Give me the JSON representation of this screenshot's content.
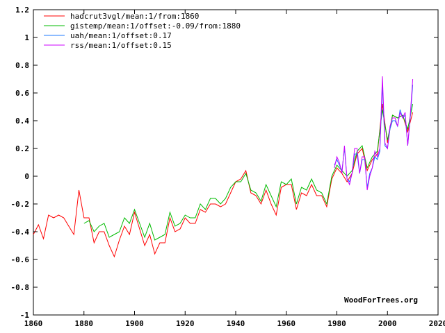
{
  "chart_data": {
    "type": "line",
    "title": "",
    "xlabel": "",
    "ylabel": "",
    "xlim": [
      1860,
      2020
    ],
    "ylim": [
      -1,
      1.2
    ],
    "x_ticks": [
      1860,
      1880,
      1900,
      1920,
      1940,
      1960,
      1980,
      2000,
      2020
    ],
    "y_ticks": [
      -1,
      -0.8,
      -0.6,
      -0.4,
      -0.2,
      0,
      0.2,
      0.4,
      0.6,
      0.8,
      1,
      1.2
    ],
    "x_tick_labels": [
      "1860",
      "1880",
      "1900",
      "1920",
      "1940",
      "1960",
      "1980",
      "2000",
      "2020"
    ],
    "y_tick_labels": [
      "-1",
      "-0.8",
      "-0.6",
      "-0.4",
      "-0.2",
      "0",
      "0.2",
      "0.4",
      "0.6",
      "0.8",
      "1",
      "1.2"
    ],
    "grid": false,
    "legend_position": "top-left",
    "watermark": "WoodForTrees.org",
    "series": [
      {
        "name": "hadcrut3vgl/mean:1/from:1860",
        "color": "#ff0000",
        "x": [
          1860,
          1862,
          1864,
          1866,
          1868,
          1870,
          1872,
          1874,
          1876,
          1878,
          1880,
          1882,
          1884,
          1886,
          1888,
          1890,
          1892,
          1894,
          1896,
          1898,
          1900,
          1902,
          1904,
          1906,
          1908,
          1910,
          1912,
          1914,
          1916,
          1918,
          1920,
          1922,
          1924,
          1926,
          1928,
          1930,
          1932,
          1934,
          1936,
          1938,
          1940,
          1942,
          1944,
          1946,
          1948,
          1950,
          1952,
          1954,
          1956,
          1958,
          1960,
          1962,
          1964,
          1966,
          1968,
          1970,
          1972,
          1974,
          1976,
          1978,
          1980,
          1982,
          1984,
          1986,
          1988,
          1990,
          1992,
          1994,
          1996,
          1998,
          2000,
          2002,
          2004,
          2006,
          2008,
          2010
        ],
        "y": [
          -0.42,
          -0.35,
          -0.45,
          -0.28,
          -0.3,
          -0.28,
          -0.3,
          -0.36,
          -0.42,
          -0.1,
          -0.3,
          -0.3,
          -0.48,
          -0.4,
          -0.4,
          -0.5,
          -0.58,
          -0.46,
          -0.36,
          -0.42,
          -0.26,
          -0.38,
          -0.5,
          -0.42,
          -0.56,
          -0.48,
          -0.48,
          -0.3,
          -0.4,
          -0.38,
          -0.3,
          -0.34,
          -0.34,
          -0.24,
          -0.26,
          -0.2,
          -0.2,
          -0.22,
          -0.2,
          -0.12,
          -0.04,
          -0.02,
          0.04,
          -0.12,
          -0.14,
          -0.2,
          -0.1,
          -0.2,
          -0.28,
          -0.08,
          -0.06,
          -0.06,
          -0.24,
          -0.12,
          -0.14,
          -0.06,
          -0.14,
          -0.14,
          -0.22,
          -0.02,
          0.06,
          0.02,
          -0.04,
          0.02,
          0.16,
          0.2,
          0.04,
          0.12,
          0.16,
          0.52,
          0.24,
          0.44,
          0.42,
          0.44,
          0.32,
          0.46
        ]
      },
      {
        "name": "gistemp/mean:1/offset:-0.09/from:1880",
        "color": "#00bb00",
        "x": [
          1880,
          1882,
          1884,
          1886,
          1888,
          1890,
          1892,
          1894,
          1896,
          1898,
          1900,
          1902,
          1904,
          1906,
          1908,
          1910,
          1912,
          1914,
          1916,
          1918,
          1920,
          1922,
          1924,
          1926,
          1928,
          1930,
          1932,
          1934,
          1936,
          1938,
          1940,
          1942,
          1944,
          1946,
          1948,
          1950,
          1952,
          1954,
          1956,
          1958,
          1960,
          1962,
          1964,
          1966,
          1968,
          1970,
          1972,
          1974,
          1976,
          1978,
          1980,
          1982,
          1984,
          1986,
          1988,
          1990,
          1992,
          1994,
          1996,
          1998,
          2000,
          2002,
          2004,
          2006,
          2008,
          2010
        ],
        "y": [
          -0.34,
          -0.32,
          -0.4,
          -0.36,
          -0.34,
          -0.44,
          -0.42,
          -0.4,
          -0.3,
          -0.34,
          -0.24,
          -0.34,
          -0.44,
          -0.34,
          -0.46,
          -0.44,
          -0.42,
          -0.26,
          -0.36,
          -0.34,
          -0.28,
          -0.3,
          -0.3,
          -0.2,
          -0.24,
          -0.16,
          -0.16,
          -0.2,
          -0.16,
          -0.08,
          -0.04,
          -0.04,
          0.02,
          -0.1,
          -0.12,
          -0.18,
          -0.06,
          -0.14,
          -0.22,
          -0.04,
          -0.06,
          -0.02,
          -0.2,
          -0.08,
          -0.1,
          -0.02,
          -0.1,
          -0.12,
          -0.2,
          0,
          0.08,
          0.04,
          0,
          0.04,
          0.18,
          0.22,
          0.06,
          0.14,
          0.18,
          0.48,
          0.26,
          0.44,
          0.42,
          0.44,
          0.34,
          0.52
        ]
      },
      {
        "name": "uah/mean:1/offset:0.17",
        "color": "#1e78ff",
        "x": [
          1979,
          1980,
          1981,
          1982,
          1983,
          1984,
          1985,
          1986,
          1987,
          1988,
          1989,
          1990,
          1991,
          1992,
          1993,
          1994,
          1995,
          1996,
          1997,
          1998,
          1999,
          2000,
          2001,
          2002,
          2003,
          2004,
          2005,
          2006,
          2007,
          2008,
          2009,
          2010
        ],
        "y": [
          0.08,
          0.12,
          0.08,
          0.04,
          0.2,
          -0.02,
          -0.04,
          0.02,
          0.16,
          0.16,
          0.02,
          0.12,
          0.12,
          -0.08,
          0.02,
          0.06,
          0.14,
          0.12,
          0.18,
          0.66,
          0.22,
          0.2,
          0.34,
          0.4,
          0.4,
          0.36,
          0.48,
          0.42,
          0.44,
          0.22,
          0.42,
          0.66
        ]
      },
      {
        "name": "rss/mean:1/offset:0.15",
        "color": "#cc00ff",
        "x": [
          1979,
          1980,
          1981,
          1982,
          1983,
          1984,
          1985,
          1986,
          1987,
          1988,
          1989,
          1990,
          1991,
          1992,
          1993,
          1994,
          1995,
          1996,
          1997,
          1998,
          1999,
          2000,
          2001,
          2002,
          2003,
          2004,
          2005,
          2006,
          2007,
          2008,
          2009,
          2010
        ],
        "y": [
          0.06,
          0.14,
          0.1,
          0.02,
          0.22,
          -0.02,
          -0.06,
          0.02,
          0.2,
          0.2,
          0.02,
          0.14,
          0.14,
          -0.1,
          0,
          0.06,
          0.18,
          0.14,
          0.2,
          0.72,
          0.24,
          0.2,
          0.36,
          0.42,
          0.42,
          0.36,
          0.46,
          0.42,
          0.46,
          0.22,
          0.44,
          0.7
        ]
      }
    ]
  }
}
